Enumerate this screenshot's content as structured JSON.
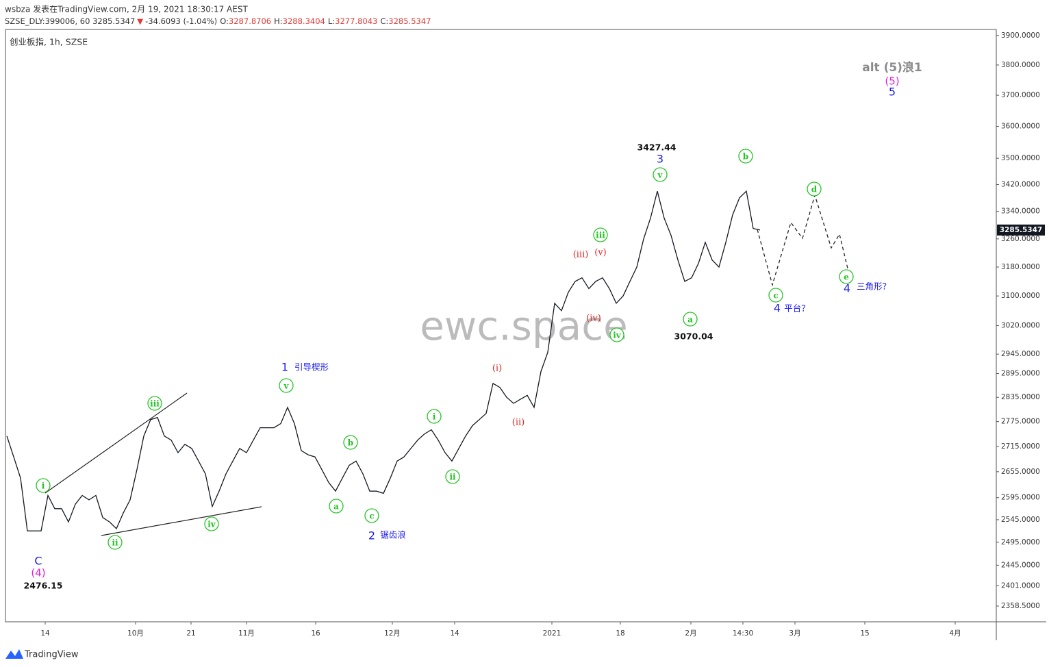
{
  "chart_data": {
    "type": "line",
    "publish_line": "wsbza 发表在TradingView.com, 2月 19, 2021 18:30:17 AEST",
    "symbol_line": "SZSE_DLY:399006, 60 3285.5347",
    "change_arrow": "▼",
    "change": "-34.6093 (-1.04%)",
    "quote": [
      {
        "label": "O:",
        "value": "3287.8706"
      },
      {
        "label": "H:",
        "value": "3288.3404"
      },
      {
        "label": "L:",
        "value": "3277.8043"
      },
      {
        "label": "C:",
        "value": "3285.5347"
      }
    ],
    "title": "创业板指, 1h, SZSE",
    "watermark": "ewc.space",
    "footer": "TradingView",
    "color": "#131722",
    "log_scale": true,
    "ylim": [
      2326,
      3921
    ],
    "yticks": [
      {
        "value": 3900,
        "label": "3900.0000"
      },
      {
        "value": 3800,
        "label": "3800.0000"
      },
      {
        "value": 3700,
        "label": "3700.0000"
      },
      {
        "value": 3600,
        "label": "3600.0000"
      },
      {
        "value": 3500,
        "label": "3500.0000"
      },
      {
        "value": 3420,
        "label": "3420.0000"
      },
      {
        "value": 3340,
        "label": "3340.0000"
      },
      {
        "value": 3260,
        "label": "3260.0000"
      },
      {
        "value": 3180,
        "label": "3180.0000"
      },
      {
        "value": 3100,
        "label": "3100.0000"
      },
      {
        "value": 3020,
        "label": "3020.0000"
      },
      {
        "value": 2945,
        "label": "2945.0000"
      },
      {
        "value": 2895,
        "label": "2895.0000"
      },
      {
        "value": 2835,
        "label": "2835.0000"
      },
      {
        "value": 2775,
        "label": "2775.0000"
      },
      {
        "value": 2715,
        "label": "2715.0000"
      },
      {
        "value": 2655,
        "label": "2655.0000"
      },
      {
        "value": 2595,
        "label": "2595.0000"
      },
      {
        "value": 2545,
        "label": "2545.0000"
      },
      {
        "value": 2495,
        "label": "2495.0000"
      },
      {
        "value": 2445,
        "label": "2445.0000"
      },
      {
        "value": 2401,
        "label": "2401.0000"
      },
      {
        "value": 2358.5,
        "label": "2358.5000"
      }
    ],
    "xlim": [
      -0.2,
      144.5
    ],
    "xticks": [
      {
        "value": 5.6,
        "label": "14"
      },
      {
        "value": 18.8,
        "label": "10月"
      },
      {
        "value": 26.9,
        "label": "21"
      },
      {
        "value": 35,
        "label": "11月"
      },
      {
        "value": 45.1,
        "label": "16"
      },
      {
        "value": 56.3,
        "label": "12月"
      },
      {
        "value": 65.4,
        "label": "14"
      },
      {
        "value": 79.6,
        "label": "2021"
      },
      {
        "value": 89.6,
        "label": "18"
      },
      {
        "value": 99.9,
        "label": "2月"
      },
      {
        "value": 107.5,
        "label": "14:30"
      },
      {
        "value": 115.1,
        "label": "3月"
      },
      {
        "value": 125.3,
        "label": "15"
      },
      {
        "value": 138.5,
        "label": "4月"
      }
    ],
    "values": [
      2740,
      2690,
      2640,
      2520,
      2520,
      2520,
      2600,
      2570,
      2570,
      2540,
      2580,
      2600,
      2590,
      2600,
      2550,
      2540,
      2525,
      2560,
      2590,
      2660,
      2740,
      2780,
      2785,
      2740,
      2730,
      2700,
      2720,
      2710,
      2680,
      2650,
      2575,
      2610,
      2650,
      2680,
      2710,
      2700,
      2730,
      2760,
      2760,
      2760,
      2770,
      2810,
      2770,
      2705,
      2695,
      2690,
      2660,
      2630,
      2610,
      2640,
      2670,
      2680,
      2650,
      2610,
      2610,
      2605,
      2640,
      2680,
      2690,
      2710,
      2730,
      2745,
      2755,
      2730,
      2700,
      2680,
      2710,
      2740,
      2765,
      2780,
      2795,
      2870,
      2860,
      2835,
      2820,
      2830,
      2840,
      2810,
      2900,
      2950,
      3080,
      3060,
      3110,
      3140,
      3150,
      3120,
      3140,
      3150,
      3120,
      3080,
      3100,
      3140,
      3180,
      3260,
      3320,
      3400,
      3320,
      3270,
      3200,
      3140,
      3150,
      3190,
      3250,
      3200,
      3180,
      3250,
      3330,
      3380,
      3400,
      3290,
      3285.5347
    ],
    "annotations": [
      {
        "text": "i",
        "style": "circle"
      },
      {
        "text": "ii",
        "style": "circle"
      },
      {
        "text": "iii",
        "style": "circle"
      },
      {
        "text": "iv",
        "style": "circle"
      },
      {
        "text": "v",
        "style": "circle"
      },
      {
        "text": "a",
        "style": "circle"
      },
      {
        "text": "b",
        "style": "circle"
      },
      {
        "text": "c",
        "style": "circle"
      },
      {
        "text": "i",
        "style": "circle"
      },
      {
        "text": "ii",
        "style": "circle"
      },
      {
        "text": "iii",
        "style": "circle"
      },
      {
        "text": "iv",
        "style": "circle"
      },
      {
        "text": "v",
        "style": "circle"
      },
      {
        "text": "a",
        "style": "circle"
      },
      {
        "text": "b",
        "style": "circle"
      },
      {
        "text": "c",
        "style": "circle"
      },
      {
        "text": "d",
        "style": "circle"
      },
      {
        "text": "e",
        "style": "circle"
      },
      {
        "text": "(i)",
        "style": "red"
      },
      {
        "text": "(ii)",
        "style": "red"
      },
      {
        "text": "(iii)",
        "style": "red"
      },
      {
        "text": "(iv)",
        "style": "red"
      },
      {
        "text": "(v)",
        "style": "red"
      },
      {
        "text": "C",
        "style": "blue"
      },
      {
        "text": "1",
        "style": "blue"
      },
      {
        "text": "引导楔形",
        "style": "note"
      },
      {
        "text": "2",
        "style": "blue"
      },
      {
        "text": "锯齿浪",
        "style": "note"
      },
      {
        "text": "3",
        "style": "blue"
      },
      {
        "text": "4",
        "style": "blue"
      },
      {
        "text": "平台？",
        "style": "note"
      },
      {
        "text": "4",
        "style": "blue"
      },
      {
        "text": "三角形？",
        "style": "note"
      },
      {
        "text": "5",
        "style": "blue"
      },
      {
        "text": "(4)",
        "style": "magenta"
      },
      {
        "text": "(5)",
        "style": "magenta"
      },
      {
        "text": "2476.15",
        "style": "price"
      },
      {
        "text": "3427.44",
        "style": "price"
      },
      {
        "text": "3070.04",
        "style": "price"
      },
      {
        "text": "alt (5)浪1",
        "style": "gray"
      }
    ]
  }
}
